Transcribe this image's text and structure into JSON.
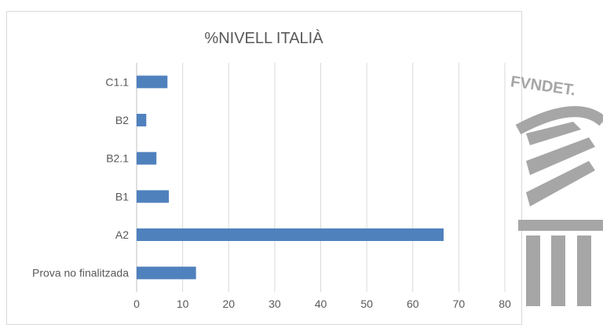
{
  "chart_data": {
    "type": "bar",
    "orientation": "horizontal",
    "title": "%NIVELL ITALIÀ",
    "categories": [
      "C1.1",
      "B2",
      "B2.1",
      "B1",
      "A2",
      "Prova no finalitzada"
    ],
    "values": [
      6.7,
      2.1,
      4.3,
      7.0,
      66.7,
      12.9
    ],
    "xlim": [
      0,
      80
    ],
    "xticks": [
      "0",
      "10",
      "20",
      "30",
      "40",
      "50",
      "60",
      "70",
      "80"
    ],
    "grid": true,
    "legend": "none",
    "bar_color": "#4f81bd",
    "grid_color": "#d9d9d9"
  },
  "watermark": {
    "text": "FVNDET.",
    "color": "#a6a6a6"
  }
}
